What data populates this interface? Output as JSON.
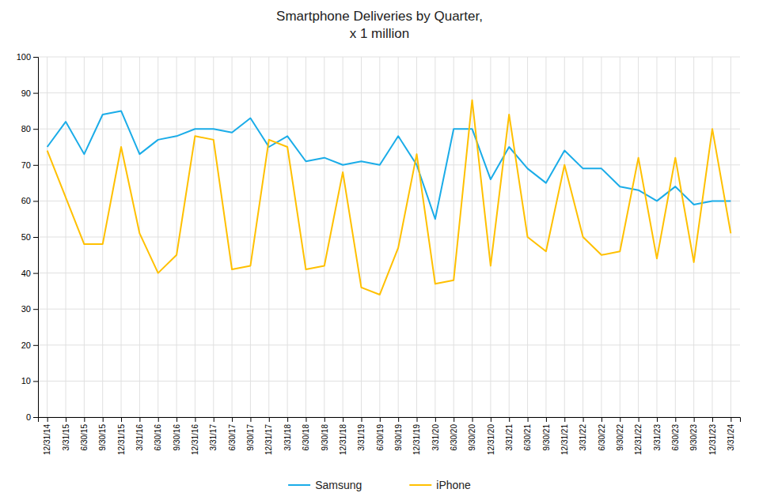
{
  "chart_data": {
    "type": "line",
    "title": "Smartphone Deliveries by Quarter,",
    "subtitle": "x 1 million",
    "categories": [
      "12/31/14",
      "3/31/15",
      "6/30/15",
      "9/30/15",
      "12/31/15",
      "3/31/16",
      "6/30/16",
      "9/30/16",
      "12/31/16",
      "3/31/17",
      "6/30/17",
      "9/30/17",
      "12/31/17",
      "3/31/18",
      "6/30/18",
      "9/30/18",
      "12/31/18",
      "3/31/19",
      "6/30/19",
      "9/30/19",
      "12/31/19",
      "3/31/20",
      "6/30/20",
      "9/30/20",
      "12/31/20",
      "3/31/21",
      "6/30/21",
      "9/30/21",
      "12/31/21",
      "3/31/22",
      "6/30/22",
      "9/30/22",
      "12/31/22",
      "3/31/23",
      "6/30/23",
      "9/30/23",
      "12/31/23",
      "3/31/24"
    ],
    "series": [
      {
        "name": "Samsung",
        "color": "#1AACE8",
        "values": [
          75,
          82,
          73,
          84,
          85,
          73,
          77,
          78,
          80,
          80,
          79,
          83,
          75,
          78,
          71,
          72,
          70,
          71,
          70,
          78,
          70,
          55,
          80,
          80,
          66,
          75,
          69,
          65,
          74,
          69,
          69,
          64,
          63,
          60,
          64,
          59,
          60,
          60
        ]
      },
      {
        "name": "iPhone",
        "color": "#FFC000",
        "values": [
          74,
          61,
          48,
          48,
          75,
          51,
          40,
          45,
          78,
          77,
          41,
          42,
          77,
          75,
          41,
          42,
          68,
          36,
          34,
          47,
          73,
          37,
          38,
          88,
          42,
          84,
          50,
          46,
          70,
          50,
          45,
          46,
          72,
          44,
          72,
          43,
          80,
          51
        ]
      }
    ],
    "ylim": [
      0,
      100
    ],
    "yticks": [
      0,
      10,
      20,
      30,
      40,
      50,
      60,
      70,
      80,
      90,
      100
    ],
    "grid": true,
    "legend": "bottom"
  }
}
